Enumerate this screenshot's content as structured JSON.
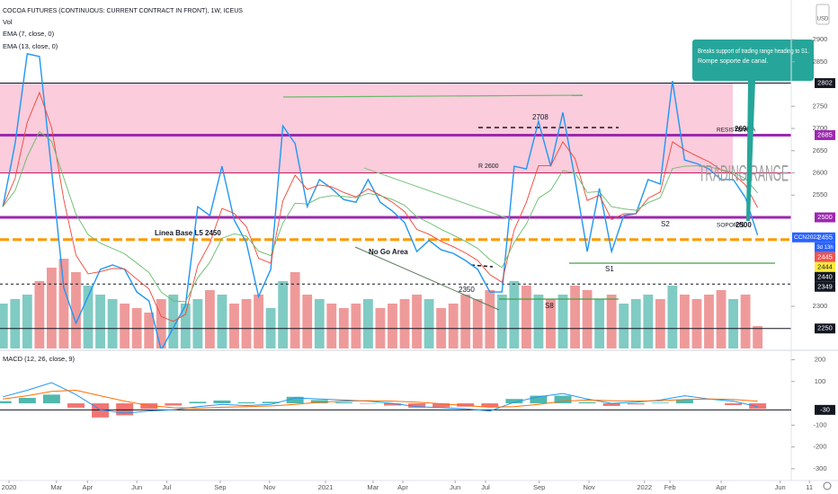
{
  "header": {
    "title": "COCOA FUTURES (CONTINUOUS: CURRENT CONTRACT IN FRONT), 1W, ICEUS",
    "currency": "USD"
  },
  "chart_data": [
    {
      "type": "line",
      "x": [
        -1,
        1,
        3,
        5,
        7,
        9,
        11,
        13,
        15,
        17,
        19,
        21,
        23,
        25,
        27,
        29,
        31,
        33,
        35,
        37,
        39,
        41,
        43,
        45,
        47,
        49,
        51,
        53,
        55,
        57,
        59,
        61,
        63,
        65,
        67,
        69,
        71,
        73,
        75,
        77,
        79,
        81,
        83,
        85,
        87,
        89,
        91,
        93,
        95,
        97,
        99,
        101,
        103,
        105,
        107,
        109,
        111,
        113,
        115,
        117,
        119,
        121,
        123
      ],
      "xlim": [
        -1.48,
        136.2
      ],
      "xticks": [
        {
          "value": 0,
          "label": "2020"
        },
        {
          "value": 7.8,
          "label": "Mar"
        },
        {
          "value": 12.9,
          "label": "Apr"
        },
        {
          "value": 21,
          "label": "Jun"
        },
        {
          "value": 25.9,
          "label": "Jul"
        },
        {
          "value": 34.7,
          "label": "Sep"
        },
        {
          "value": 42.8,
          "label": "Nov"
        },
        {
          "value": 52,
          "label": "2021"
        },
        {
          "value": 59.8,
          "label": "Mar"
        },
        {
          "value": 64.7,
          "label": "Apr"
        },
        {
          "value": 73.3,
          "label": "Jun"
        },
        {
          "value": 78.3,
          "label": "Jul"
        },
        {
          "value": 87.1,
          "label": "Sep"
        },
        {
          "value": 95.3,
          "label": "Nov"
        },
        {
          "value": 104.4,
          "label": "2022"
        },
        {
          "value": 108.6,
          "label": "Feb"
        },
        {
          "value": 117,
          "label": "Apr"
        },
        {
          "value": 126.7,
          "label": "Jun"
        },
        {
          "value": 131.5,
          "label": "11"
        }
      ],
      "ylim": [
        2205,
        2989
      ],
      "yticks": [
        2300,
        2550,
        2600,
        2650,
        2700,
        2750,
        2850,
        2900
      ],
      "grid": false,
      "series": [
        {
          "color": "#2196f3",
          "values": [
            2524,
            2666,
            2868,
            2862,
            2605,
            2342,
            2262,
            2322,
            2383,
            2393,
            2383,
            2332,
            2312,
            2201,
            2252,
            2302,
            2524,
            2504,
            2615,
            2494,
            2443,
            2322,
            2383,
            2706,
            2666,
            2524,
            2585,
            2565,
            2540,
            2534,
            2585,
            2534,
            2514,
            2488,
            2423,
            2448,
            2427,
            2419,
            2403,
            2383,
            2332,
            2332,
            2615,
            2609,
            2716,
            2615,
            2736,
            2585,
            2423,
            2565,
            2423,
            2504,
            2508,
            2585,
            2575,
            2807,
            2629,
            2621,
            2609,
            2585,
            2585,
            2544,
            2460
          ]
        },
        {
          "name": "EMA (7, close, 0)",
          "color": "#f44336",
          "values": [
            2524,
            2588,
            2714,
            2781,
            2702,
            2540,
            2415,
            2373,
            2378,
            2385,
            2384,
            2361,
            2339,
            2277,
            2266,
            2282,
            2391,
            2442,
            2520,
            2509,
            2479,
            2408,
            2397,
            2537,
            2595,
            2563,
            2573,
            2569,
            2556,
            2546,
            2564,
            2550,
            2534,
            2513,
            2473,
            2462,
            2446,
            2434,
            2420,
            2403,
            2371,
            2354,
            2472,
            2534,
            2616,
            2616,
            2670,
            2632,
            2538,
            2550,
            2495,
            2508,
            2508,
            2543,
            2557,
            2670,
            2652,
            2638,
            2625,
            2607,
            2597,
            2573,
            2522
          ]
        },
        {
          "name": "EMA (13, close, 0)",
          "color": "#66bb6a",
          "values": [
            2524,
            2560,
            2637,
            2693,
            2671,
            2589,
            2507,
            2461,
            2442,
            2430,
            2418,
            2397,
            2376,
            2332,
            2312,
            2310,
            2364,
            2399,
            2453,
            2463,
            2458,
            2424,
            2414,
            2487,
            2532,
            2530,
            2544,
            2549,
            2547,
            2544,
            2554,
            2549,
            2540,
            2527,
            2501,
            2488,
            2473,
            2460,
            2446,
            2430,
            2405,
            2387,
            2444,
            2485,
            2543,
            2561,
            2605,
            2600,
            2556,
            2558,
            2524,
            2519,
            2516,
            2533,
            2544,
            2610,
            2615,
            2616,
            2614,
            2607,
            2601,
            2587,
            2555
          ]
        }
      ],
      "volume": {
        "name": "Vol",
        "ylim": [
          0,
          388
        ],
        "up_color": "#80cbc4",
        "down_color": "#ef9a9a",
        "values": [
          50,
          55,
          60,
          75,
          90,
          100,
          85,
          70,
          60,
          55,
          50,
          45,
          40,
          55,
          60,
          50,
          55,
          65,
          60,
          50,
          55,
          60,
          45,
          75,
          85,
          60,
          55,
          50,
          45,
          50,
          55,
          45,
          50,
          55,
          60,
          55,
          45,
          50,
          60,
          55,
          65,
          60,
          75,
          70,
          60,
          55,
          60,
          70,
          65,
          55,
          60,
          50,
          55,
          60,
          55,
          70,
          60,
          55,
          60,
          65,
          55,
          60,
          25
        ]
      },
      "zone": {
        "from": 2600,
        "to": 2802,
        "color": "#f8bbd0"
      },
      "levels": [
        {
          "value": 2802,
          "color": "#131722",
          "width": 1,
          "dashed": false
        },
        {
          "value": 2685,
          "color": "#9c27b0",
          "width": 3,
          "dashed": false
        },
        {
          "value": 2600,
          "color": "#c2185b",
          "width": 1,
          "dashed": false
        },
        {
          "value": 2500,
          "color": "#9c27b0",
          "width": 3,
          "dashed": false
        },
        {
          "value": 2450,
          "color": "#ff9800",
          "width": 3,
          "dashed": true
        },
        {
          "value": 2350,
          "color": "#131722",
          "width": 1,
          "dashed": true
        },
        {
          "value": 2250,
          "color": "#131722",
          "width": 1,
          "dashed": false
        }
      ],
      "price_tags": [
        {
          "value": 2802,
          "color": "#131722"
        },
        {
          "value": 2685,
          "color": "#9c27b0"
        },
        {
          "value": 2500,
          "color": "#9c27b0"
        },
        {
          "value": 2455,
          "color": "#2962ff",
          "symbol": "CCN2022",
          "countdown": "3d 13h"
        },
        {
          "value": 2445,
          "color": "#ef5350"
        },
        {
          "value": 2444,
          "color": "#ffeb3b"
        },
        {
          "value": 2440,
          "color": "#131722"
        },
        {
          "value": 2349,
          "color": "#131722"
        },
        {
          "value": 2250,
          "color": "#131722"
        }
      ],
      "annotations": [
        "Linea Base L5 2450",
        "No Go Area",
        "R 2600",
        "2708",
        "S2",
        "S1",
        "S8",
        "2350",
        "RESISTENCIA",
        "2690",
        "SOPORTE",
        "2500",
        "TRADING RANGE",
        "Breaks support of trading range heading to S1.",
        "Rompe soporte de canal."
      ]
    },
    {
      "type": "macd",
      "title": "MACD (12, 26, close, 9)",
      "x": [
        -1,
        3,
        7,
        11,
        15,
        19,
        23,
        27,
        31,
        35,
        39,
        43,
        47,
        51,
        55,
        59,
        63,
        67,
        71,
        75,
        79,
        83,
        87,
        91,
        95,
        99,
        103,
        107,
        111,
        115,
        119,
        123
      ],
      "xlim": [
        -1.48,
        136.2
      ],
      "ylim": [
        -354,
        235
      ],
      "yticks": [
        200,
        100,
        -100,
        -200,
        -300
      ],
      "series": [
        {
          "color": "#2196f3",
          "values": [
            30,
            60,
            95,
            40,
            -30,
            -45,
            -35,
            -30,
            -15,
            -5,
            -10,
            -5,
            25,
            20,
            15,
            10,
            0,
            -15,
            -20,
            -25,
            -35,
            5,
            30,
            45,
            20,
            0,
            5,
            15,
            35,
            20,
            10,
            -15
          ]
        },
        {
          "color": "#ff6d00",
          "values": [
            20,
            35,
            55,
            60,
            35,
            10,
            -10,
            -20,
            -22,
            -18,
            -15,
            -12,
            -5,
            5,
            10,
            12,
            10,
            5,
            -2,
            -10,
            -18,
            -15,
            -5,
            10,
            15,
            12,
            10,
            12,
            18,
            20,
            18,
            10
          ]
        }
      ],
      "histogram": {
        "up_color": "#26a69a",
        "down_color": "#ef5350",
        "values": [
          10,
          25,
          40,
          -20,
          -65,
          -55,
          -25,
          -10,
          7,
          13,
          5,
          7,
          30,
          15,
          5,
          -2,
          -10,
          -20,
          -18,
          -15,
          -17,
          20,
          35,
          35,
          5,
          -12,
          -5,
          3,
          17,
          0,
          -8,
          -25
        ]
      },
      "tag": {
        "value": -30,
        "color": "#131722"
      }
    }
  ]
}
